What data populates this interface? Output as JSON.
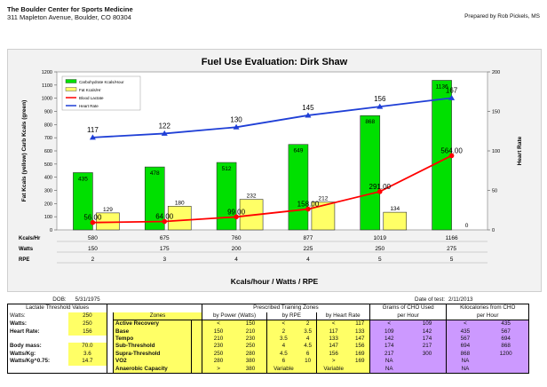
{
  "header": {
    "org_name": "The Boulder Center for Sports Medicine",
    "address": "311 Mapleton Avenue, Boulder, CO  80304",
    "prepared_by": "Prepared by Rob Pickels, MS"
  },
  "chart_data": {
    "type": "bar",
    "title": "Fuel Use Evaluation: Dirk Shaw",
    "xlabel": "Kcals/hour / Watts / RPE",
    "ylabel": "Fat Kcals (yellow) Carb Kcals (green)",
    "y2label": "Heart Rate",
    "ylim": [
      0,
      1200
    ],
    "y2lim": [
      0,
      200
    ],
    "yticks": [
      "0",
      "100",
      "200",
      "300",
      "400",
      "500",
      "600",
      "700",
      "800",
      "900",
      "1000",
      "1100",
      "1200"
    ],
    "y2ticks": [
      "0",
      "50",
      "100",
      "150",
      "200"
    ],
    "grid": false,
    "legend_position": "top-left",
    "legend": [
      "Carbohydrate Kcals/Hour",
      "Fat Kcals/Hr",
      "Blood Lactate",
      "Heart Rate"
    ],
    "row_labels": [
      "Kcals/Hr",
      "Watts",
      "RPE"
    ],
    "categories_kcal": [
      "580",
      "675",
      "760",
      "877",
      "1019",
      "1166"
    ],
    "categories_watts": [
      "150",
      "175",
      "200",
      "225",
      "250",
      "275"
    ],
    "categories_rpe": [
      "2",
      "3",
      "4",
      "4",
      "5",
      "5"
    ],
    "series": [
      {
        "name": "Carbohydrate Kcals/Hour",
        "axis": "left",
        "kind": "bar",
        "color": "#00e000",
        "values": [
          435,
          478,
          512,
          649,
          868,
          1136
        ],
        "labels": [
          "435",
          "478",
          "512",
          "649",
          "868",
          "1136"
        ]
      },
      {
        "name": "Fat Kcals/Hr",
        "axis": "left",
        "kind": "bar",
        "color": "#ffff66",
        "values": [
          129,
          180,
          232,
          212,
          134,
          0
        ],
        "labels": [
          "129",
          "180",
          "232",
          "212",
          "134",
          "0"
        ]
      },
      {
        "name": "Blood Lactate",
        "axis": "left",
        "kind": "line",
        "color": "#ff0000",
        "values": [
          56,
          64,
          99,
          158,
          291,
          564
        ],
        "labels": [
          "56.00",
          "64.00",
          "99.00",
          "158.00",
          "291.00",
          "564.00"
        ]
      },
      {
        "name": "Heart Rate",
        "axis": "right",
        "kind": "line",
        "color": "#1f3fd6",
        "values": [
          117,
          122,
          130,
          145,
          156,
          167
        ],
        "labels": [
          "117",
          "122",
          "130",
          "145",
          "156",
          "167"
        ]
      }
    ]
  },
  "lower": {
    "dob_label": "DOB:",
    "dob_value": "5/31/1975",
    "test_date_label": "Date of test:",
    "test_date_value": "2/11/2013",
    "lt_header": "Lactate Threshold Values",
    "zones_header": "Zones",
    "ptz_header": "Prescribed Training Zones",
    "power_header": "by Power (Watts)",
    "rpe_header": "by RPE",
    "hr_header": "by Heart Rate",
    "grams_header_1": "Grams of CHO Used",
    "grams_header_2": "per Hour",
    "kcal_header_1": "Kilocalories from CHO",
    "kcal_header_2": "per Hour",
    "left": [
      {
        "label": "Watts:",
        "value": "250"
      },
      {
        "label": "Heart Rate:",
        "value": "156"
      },
      {
        "label": "",
        "value": ""
      },
      {
        "label": "Body mass:",
        "value": "70.0"
      },
      {
        "label": "Watts/Kg:",
        "value": "3.6"
      },
      {
        "label": "Watts/Kg^0.75:",
        "value": "14.7"
      },
      {
        "label": "",
        "value": ""
      },
      {
        "label": "",
        "value": ""
      }
    ],
    "rows": [
      {
        "zone": "Active Recovery",
        "p1": "<",
        "p2": "150",
        "r1": "<",
        "r2": "2",
        "h1": "<",
        "h2": "117",
        "g1": "<",
        "g2": "109",
        "k1": "<",
        "k2": "435"
      },
      {
        "zone": "Base",
        "p1": "150",
        "p2": "210",
        "r1": "2",
        "r2": "3.5",
        "h1": "117",
        "h2": "133",
        "g1": "109",
        "g2": "142",
        "k1": "435",
        "k2": "567"
      },
      {
        "zone": "Tempo",
        "p1": "210",
        "p2": "230",
        "r1": "3.5",
        "r2": "4",
        "h1": "133",
        "h2": "147",
        "g1": "142",
        "g2": "174",
        "k1": "567",
        "k2": "694"
      },
      {
        "zone": "Sub-Threshold",
        "p1": "230",
        "p2": "250",
        "r1": "4",
        "r2": "4.5",
        "h1": "147",
        "h2": "156",
        "g1": "174",
        "g2": "217",
        "k1": "694",
        "k2": "868"
      },
      {
        "zone": "Supra-Threshold",
        "p1": "250",
        "p2": "280",
        "r1": "4.5",
        "r2": "6",
        "h1": "156",
        "h2": "169",
        "g1": "217",
        "g2": "300",
        "k1": "868",
        "k2": "1200"
      },
      {
        "zone": "VO2",
        "p1": "280",
        "p2": "380",
        "r1": "6",
        "r2": "10",
        "h1": ">",
        "h2": "169",
        "g1": "NA",
        "g2": "",
        "k1": "NA",
        "k2": ""
      },
      {
        "zone": "Anaerobic Capacity",
        "p1": ">",
        "p2": "380",
        "r1": "Variable",
        "r2": "",
        "h1": "Variable",
        "h2": "",
        "g1": "NA",
        "g2": "",
        "k1": "NA",
        "k2": ""
      }
    ]
  }
}
